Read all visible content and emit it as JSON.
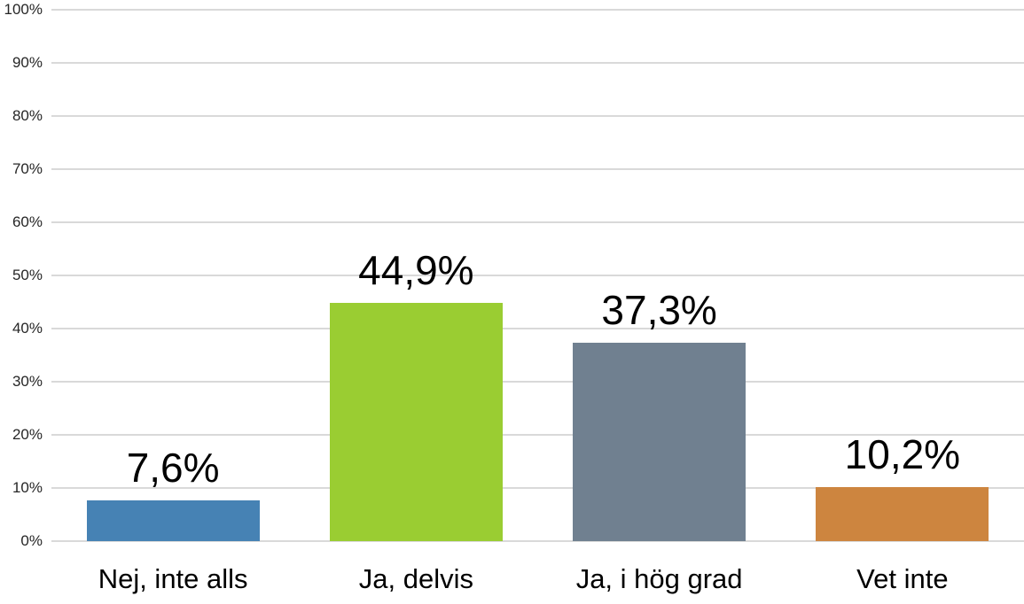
{
  "chart_data": {
    "type": "bar",
    "title": "",
    "xlabel": "",
    "ylabel": "",
    "categories": [
      "Nej, inte alls",
      "Ja, delvis",
      "Ja, i hög grad",
      "Vet inte"
    ],
    "values": [
      7.6,
      44.9,
      37.3,
      10.2
    ],
    "value_labels": [
      "7,6%",
      "44,9%",
      "37,3%",
      "10,2%"
    ],
    "bar_colors": [
      "#4682B4",
      "#9ACD32",
      "#708090",
      "#CD853F"
    ],
    "ylim": [
      0,
      100
    ],
    "y_ticks": [
      0,
      10,
      20,
      30,
      40,
      50,
      60,
      70,
      80,
      90,
      100
    ],
    "y_tick_labels": [
      "0%",
      "10%",
      "20%",
      "30%",
      "40%",
      "50%",
      "60%",
      "70%",
      "80%",
      "90%",
      "100%"
    ],
    "grid": true,
    "gridline_color": "#d9d9d9",
    "legend_position": "none",
    "axis_text_color": "#262626",
    "data_label_color": "#000000",
    "background_color": "#ffffff"
  }
}
